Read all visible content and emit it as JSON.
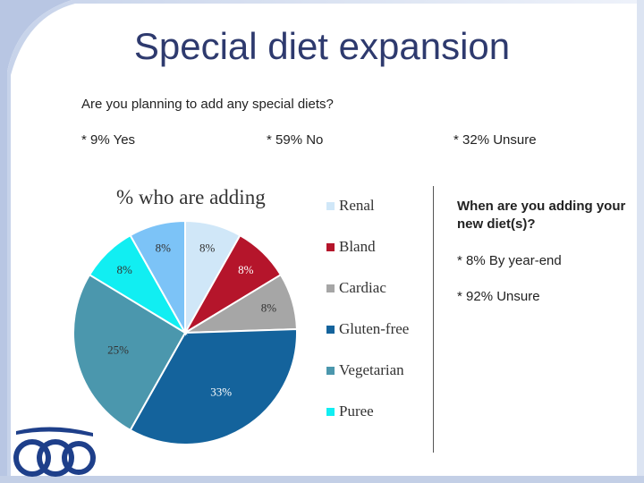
{
  "title": "Special diet expansion",
  "question": "Are you planning to add any special diets?",
  "answers": {
    "yes": "* 9% Yes",
    "no": "* 59% No",
    "unsure": "* 32% Unsure"
  },
  "right_panel": {
    "question": "When are you adding your new diet(s)?",
    "answer1": "* 8% By year-end",
    "answer2": "* 92% Unsure"
  },
  "chart_data": {
    "type": "pie",
    "title": "% who are adding",
    "categories": [
      "Renal",
      "Bland",
      "Cardiac",
      "Gluten-free",
      "Vegetarian",
      "Puree"
    ],
    "values": [
      8,
      8,
      8,
      33,
      25,
      8
    ],
    "labels": [
      "8%",
      "8%",
      "8%",
      "33%",
      "25%",
      "8%"
    ],
    "colors": [
      "#d0e7f8",
      "#b5152b",
      "#a6a6a6",
      "#14639c",
      "#4b97ad",
      "#11eef2"
    ],
    "extra_slice": {
      "value": 8,
      "label": "8%",
      "color": "#7cc3f7"
    },
    "legend_position": "right"
  }
}
